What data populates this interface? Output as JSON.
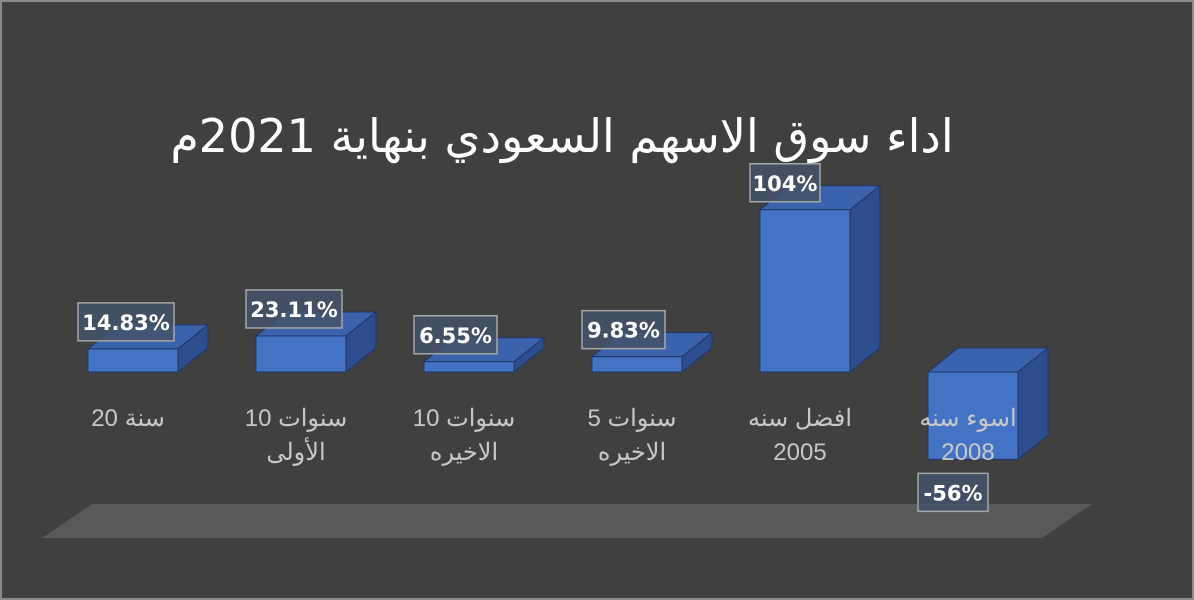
{
  "chart_data": {
    "type": "bar",
    "title": "اداء  سوق الاسهم السعودي بنهاية 2021م",
    "categories": [
      [
        "20 سنة"
      ],
      [
        "10 سنوات",
        "الأولى"
      ],
      [
        "10 سنوات",
        "الاخيره"
      ],
      [
        "5 سنوات",
        "الاخيره"
      ],
      [
        "افضل سنه",
        "2005"
      ],
      [
        "اسوء سنه",
        "2008"
      ]
    ],
    "values": [
      14.83,
      23.11,
      6.55,
      9.83,
      104,
      -56
    ],
    "data_labels": [
      "14.83%",
      "23.11%",
      "6.55%",
      "9.83%",
      "104%",
      "-56%"
    ],
    "unit": "%",
    "ylim": [
      -60,
      110
    ],
    "grid": false,
    "legend": "none",
    "colors": {
      "bar_front": "#4472c4",
      "bar_side": "#2e4d8f",
      "bar_top": "#3b63ad",
      "floor": "#595959",
      "background": "#404040",
      "label_box": "#44546a"
    }
  }
}
